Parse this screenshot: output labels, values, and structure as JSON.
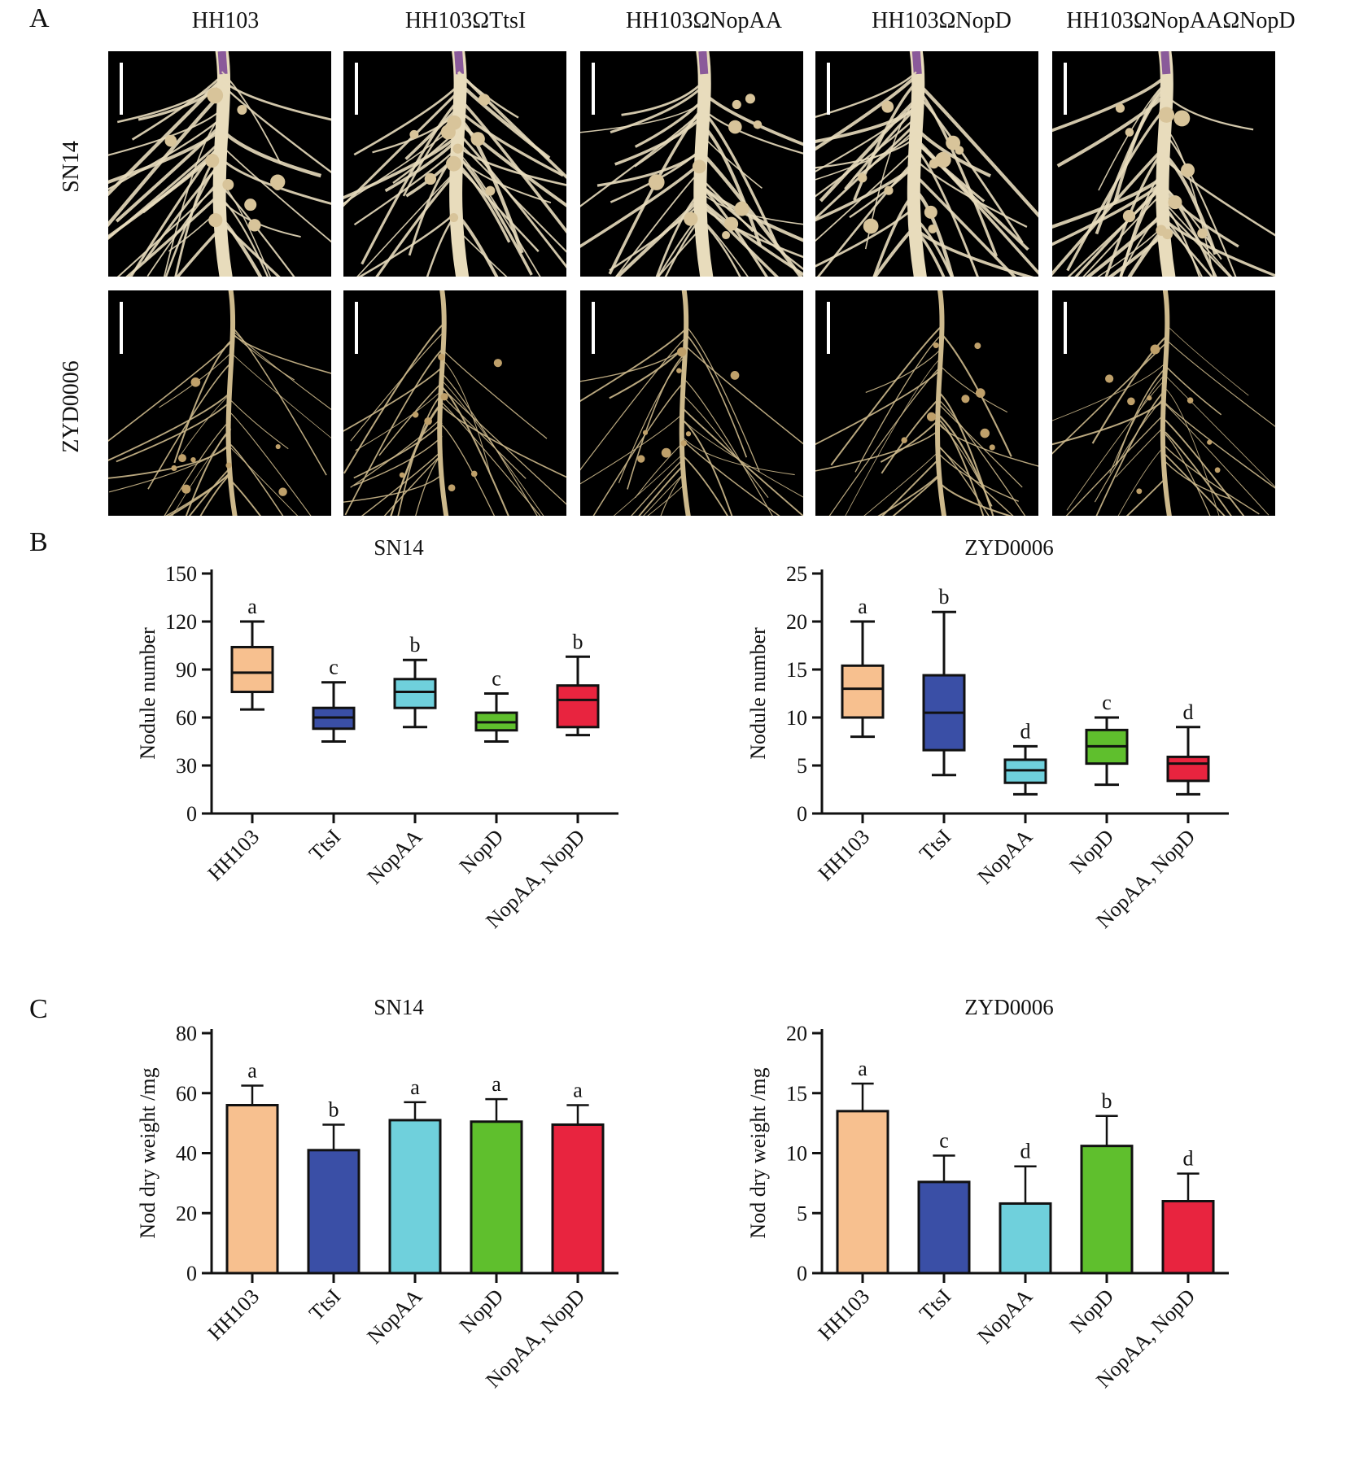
{
  "panel_a": {
    "letter": "A",
    "column_labels": [
      "HH103",
      "HH103ΩTtsI",
      "HH103ΩNopAA",
      "HH103ΩNopD",
      "HH103ΩNopAAΩNopD"
    ],
    "row_labels": [
      "SN14",
      "ZYD0006"
    ]
  },
  "panel_b": {
    "letter": "B",
    "charts": [
      {
        "type": "box",
        "title": "SN14",
        "ylabel": "Nodule number",
        "ylim": [
          0,
          150
        ],
        "yticks": [
          0,
          30,
          60,
          90,
          120,
          150
        ],
        "categories": [
          "HH103",
          "TtsI",
          "NopAA",
          "NopD",
          "NopAA, NopD"
        ],
        "colors": [
          "#f7c08f",
          "#3a4fa6",
          "#6fd0dc",
          "#5fbf2d",
          "#e8243f"
        ],
        "boxes": [
          {
            "min": 65,
            "q1": 76,
            "median": 88,
            "q3": 104,
            "max": 120,
            "letter": "a"
          },
          {
            "min": 45,
            "q1": 53,
            "median": 60,
            "q3": 66,
            "max": 82,
            "letter": "c"
          },
          {
            "min": 54,
            "q1": 66,
            "median": 76,
            "q3": 84,
            "max": 96,
            "letter": "b"
          },
          {
            "min": 45,
            "q1": 52,
            "median": 57,
            "q3": 63,
            "max": 75,
            "letter": "c"
          },
          {
            "min": 49,
            "q1": 54,
            "median": 71,
            "q3": 80,
            "max": 98,
            "letter": "b"
          }
        ]
      },
      {
        "type": "box",
        "title": "ZYD0006",
        "ylabel": "Nodule number",
        "ylim": [
          0,
          25
        ],
        "yticks": [
          0,
          5,
          10,
          15,
          20,
          25
        ],
        "categories": [
          "HH103",
          "TtsI",
          "NopAA",
          "NopD",
          "NopAA, NopD"
        ],
        "colors": [
          "#f7c08f",
          "#3a4fa6",
          "#6fd0dc",
          "#5fbf2d",
          "#e8243f"
        ],
        "boxes": [
          {
            "min": 8,
            "q1": 10,
            "median": 13,
            "q3": 15.4,
            "max": 20,
            "letter": "a"
          },
          {
            "min": 4,
            "q1": 6.6,
            "median": 10.5,
            "q3": 14.4,
            "max": 21,
            "letter": "b"
          },
          {
            "min": 2,
            "q1": 3.2,
            "median": 4.5,
            "q3": 5.6,
            "max": 7,
            "letter": "d"
          },
          {
            "min": 3,
            "q1": 5.2,
            "median": 7,
            "q3": 8.7,
            "max": 10,
            "letter": "c"
          },
          {
            "min": 2,
            "q1": 3.4,
            "median": 5.2,
            "q3": 5.9,
            "max": 9,
            "letter": "d"
          }
        ]
      }
    ]
  },
  "panel_c": {
    "letter": "C",
    "charts": [
      {
        "type": "bar",
        "title": "SN14",
        "ylabel": "Nod dry weight /mg",
        "ylim": [
          0,
          80
        ],
        "yticks": [
          0,
          20,
          40,
          60,
          80
        ],
        "categories": [
          "HH103",
          "TtsI",
          "NopAA",
          "NopD",
          "NopAA, NopD"
        ],
        "colors": [
          "#f7c08f",
          "#3a4fa6",
          "#6fd0dc",
          "#5fbf2d",
          "#e8243f"
        ],
        "values": [
          56,
          41,
          51,
          50.5,
          49.5
        ],
        "errors": [
          6.5,
          8.5,
          6,
          7.5,
          6.5
        ],
        "letters": [
          "a",
          "b",
          "a",
          "a",
          "a"
        ]
      },
      {
        "type": "bar",
        "title": "ZYD0006",
        "ylabel": "Nod dry weight /mg",
        "ylim": [
          0,
          20
        ],
        "yticks": [
          0,
          5,
          10,
          15,
          20
        ],
        "categories": [
          "HH103",
          "TtsI",
          "NopAA",
          "NopD",
          "NopAA, NopD"
        ],
        "colors": [
          "#f7c08f",
          "#3a4fa6",
          "#6fd0dc",
          "#5fbf2d",
          "#e8243f"
        ],
        "values": [
          13.5,
          7.6,
          5.8,
          10.6,
          6
        ],
        "errors": [
          2.3,
          2.2,
          3.1,
          2.5,
          2.3
        ],
        "letters": [
          "a",
          "c",
          "d",
          "b",
          "d"
        ]
      }
    ]
  },
  "chart_data": [
    {
      "type": "box",
      "title": "SN14",
      "ylabel": "Nodule number",
      "ylim": [
        0,
        150
      ],
      "categories": [
        "HH103",
        "TtsI",
        "NopAA",
        "NopD",
        "NopAA, NopD"
      ],
      "medians": [
        88,
        60,
        76,
        57,
        71
      ],
      "q1": [
        76,
        53,
        66,
        52,
        54
      ],
      "q3": [
        104,
        66,
        84,
        63,
        80
      ],
      "min": [
        65,
        45,
        54,
        45,
        49
      ],
      "max": [
        120,
        82,
        96,
        75,
        98
      ],
      "significance": [
        "a",
        "c",
        "b",
        "c",
        "b"
      ]
    },
    {
      "type": "box",
      "title": "ZYD0006",
      "ylabel": "Nodule number",
      "ylim": [
        0,
        25
      ],
      "categories": [
        "HH103",
        "TtsI",
        "NopAA",
        "NopD",
        "NopAA, NopD"
      ],
      "medians": [
        13,
        10.5,
        4.5,
        7,
        5.2
      ],
      "q1": [
        10,
        6.6,
        3.2,
        5.2,
        3.4
      ],
      "q3": [
        15.4,
        14.4,
        5.6,
        8.7,
        5.9
      ],
      "min": [
        8,
        4,
        2,
        3,
        2
      ],
      "max": [
        20,
        21,
        7,
        10,
        9
      ],
      "significance": [
        "a",
        "b",
        "d",
        "c",
        "d"
      ]
    },
    {
      "type": "bar",
      "title": "SN14",
      "ylabel": "Nod dry weight /mg",
      "ylim": [
        0,
        80
      ],
      "categories": [
        "HH103",
        "TtsI",
        "NopAA",
        "NopD",
        "NopAA, NopD"
      ],
      "values": [
        56,
        41,
        51,
        50.5,
        49.5
      ],
      "errors": [
        6.5,
        8.5,
        6,
        7.5,
        6.5
      ],
      "significance": [
        "a",
        "b",
        "a",
        "a",
        "a"
      ]
    },
    {
      "type": "bar",
      "title": "ZYD0006",
      "ylabel": "Nod dry weight /mg",
      "ylim": [
        0,
        20
      ],
      "categories": [
        "HH103",
        "TtsI",
        "NopAA",
        "NopD",
        "NopAA, NopD"
      ],
      "values": [
        13.5,
        7.6,
        5.8,
        10.6,
        6
      ],
      "errors": [
        2.3,
        2.2,
        3.1,
        2.5,
        2.3
      ],
      "significance": [
        "a",
        "c",
        "d",
        "b",
        "d"
      ]
    }
  ]
}
